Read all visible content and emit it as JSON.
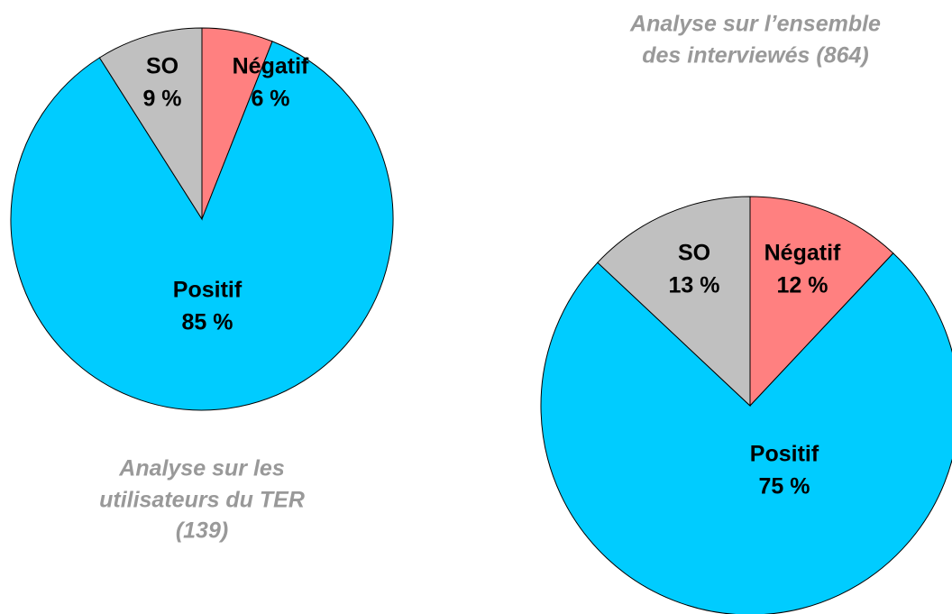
{
  "chart_data": [
    {
      "type": "pie",
      "title": [
        "Analyse sur les",
        "utilisateurs du TER",
        "(139)"
      ],
      "categories": [
        "Négatif",
        "Positif",
        "SO"
      ],
      "values": [
        6,
        85,
        9
      ],
      "value_labels": [
        "6 %",
        "85 %",
        "9 %"
      ],
      "colors": [
        "#ff8080",
        "#00ccff",
        "#c0c0c0"
      ]
    },
    {
      "type": "pie",
      "title": [
        "Analyse sur l’ensemble",
        "des interviewés (864)"
      ],
      "categories": [
        "Négatif",
        "Positif",
        "SO"
      ],
      "values": [
        12,
        75,
        13
      ],
      "value_labels": [
        "12 %",
        "75 %",
        "13 %"
      ],
      "colors": [
        "#ff8080",
        "#00ccff",
        "#c0c0c0"
      ]
    }
  ]
}
